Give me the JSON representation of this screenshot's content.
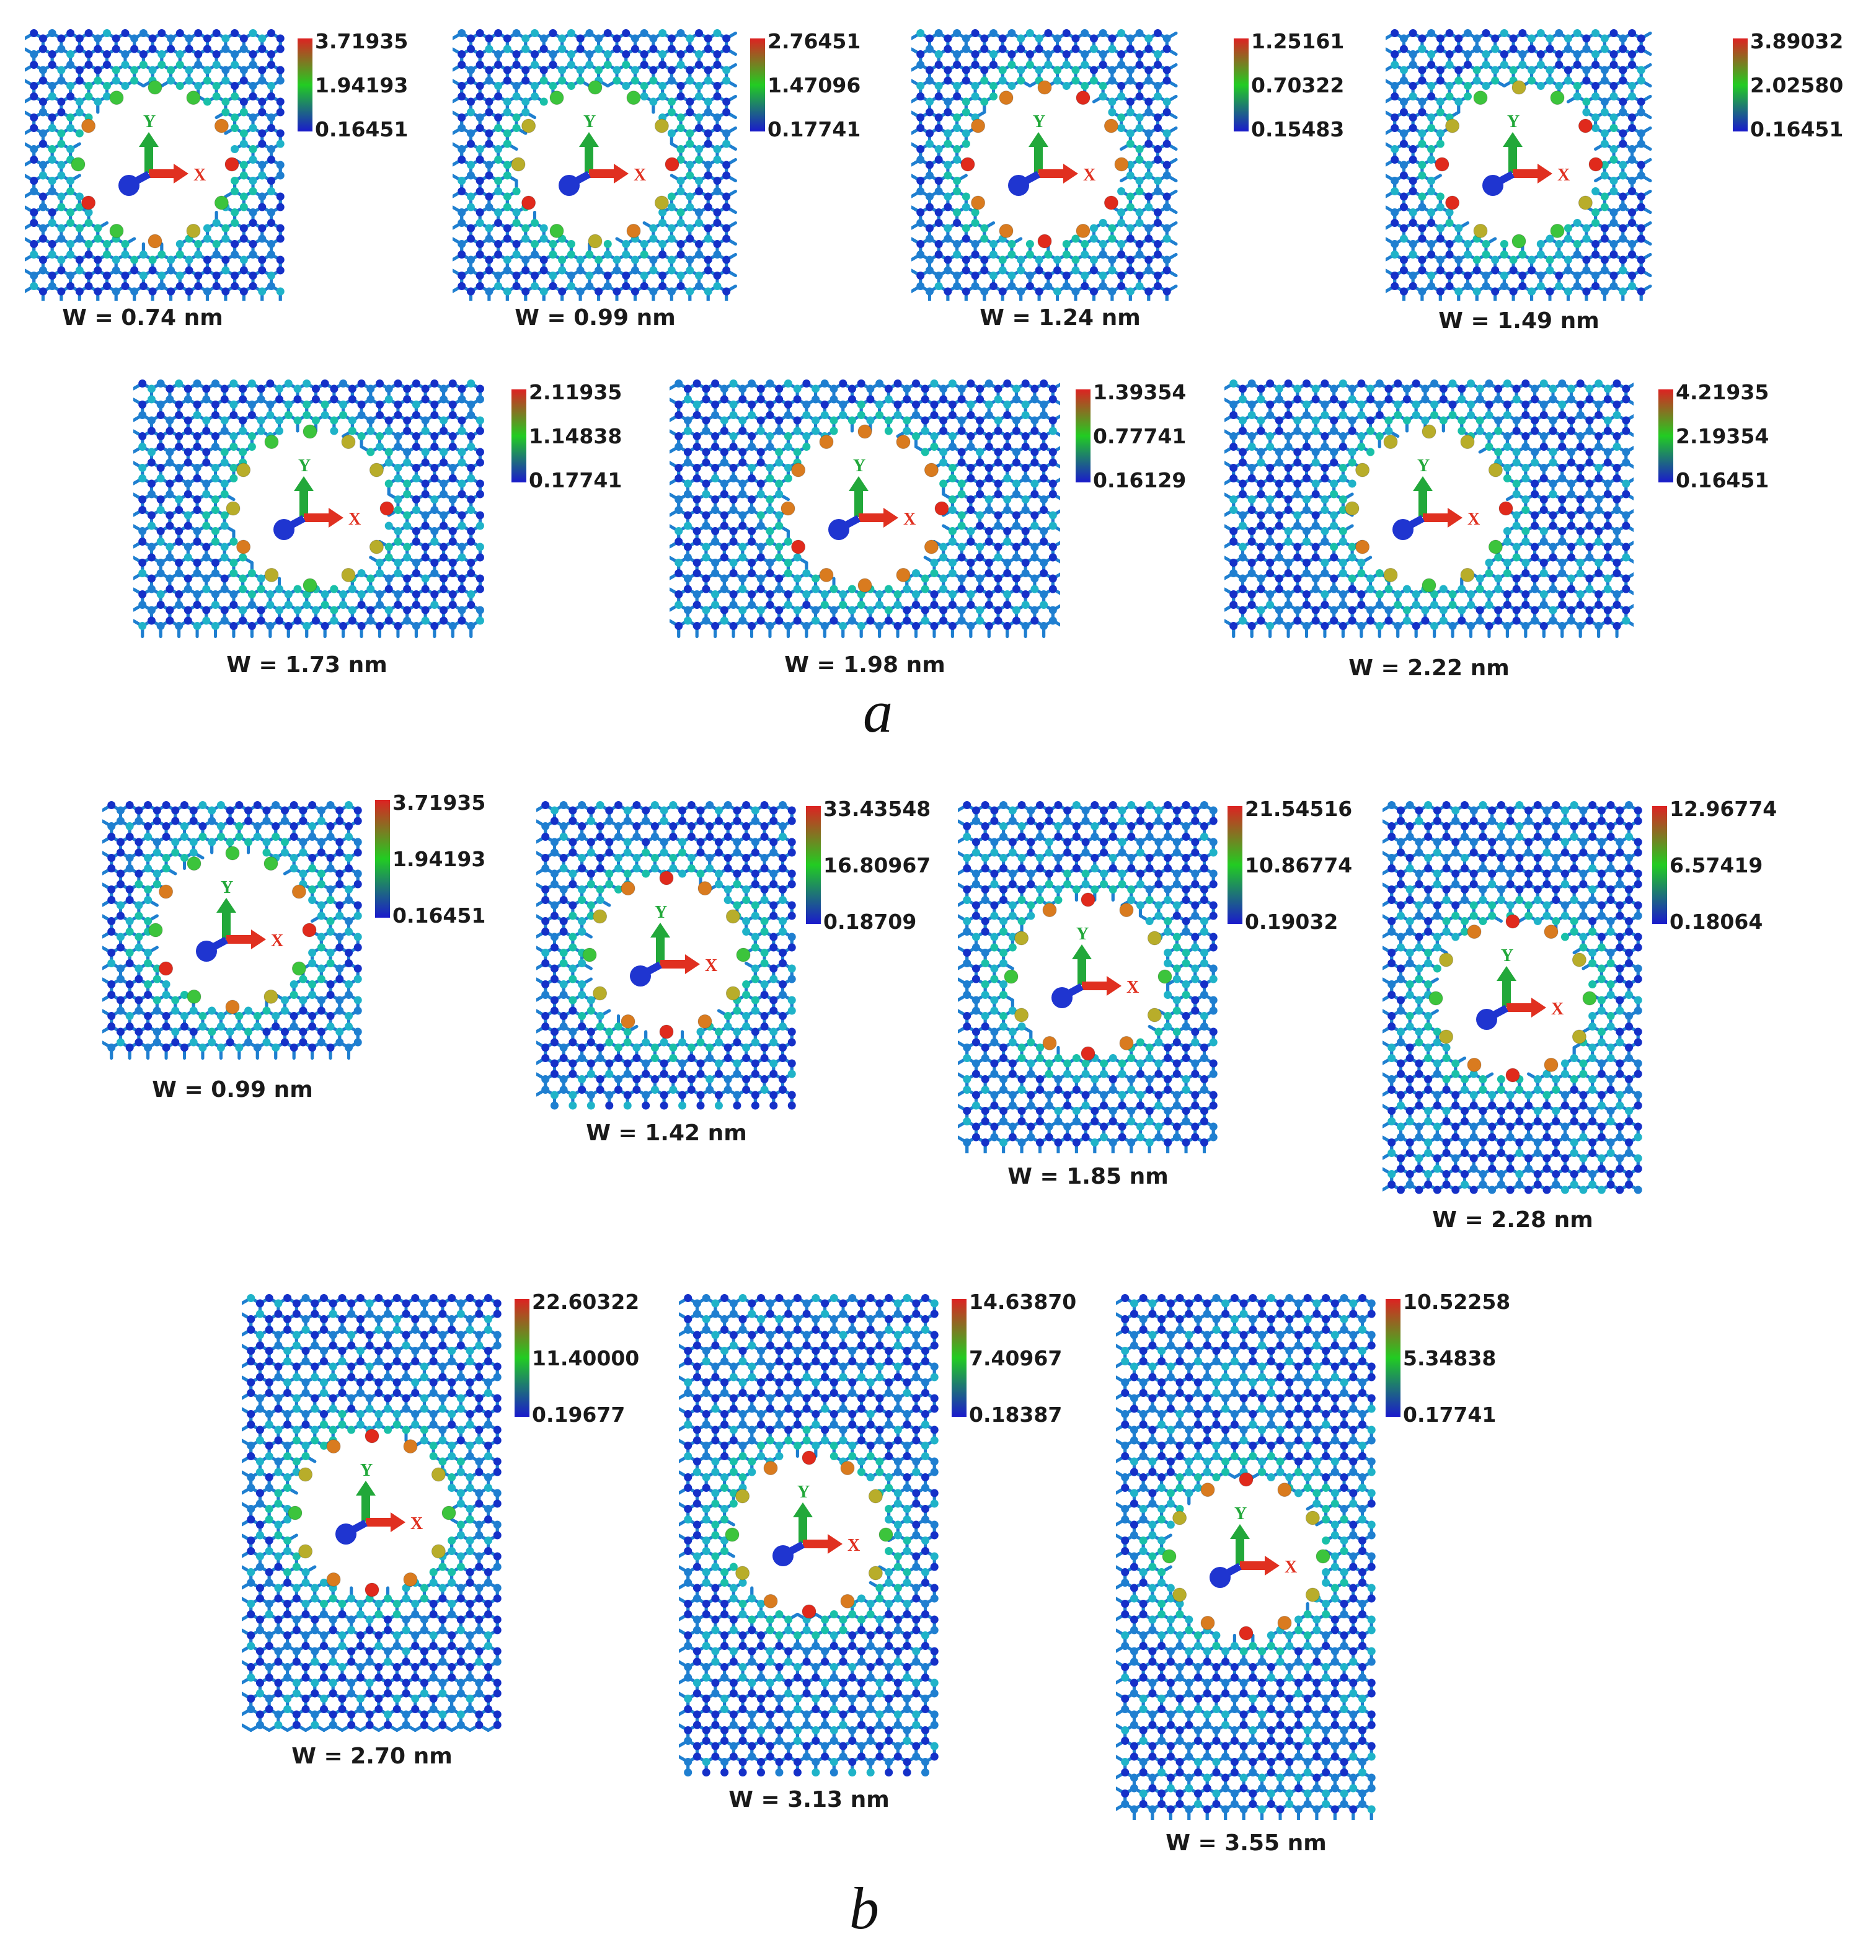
{
  "figure": {
    "section_a_label": "a",
    "section_b_label": "b",
    "axis_labels": {
      "x": "X",
      "y": "Y"
    },
    "colors": {
      "lattice_blue": "#1f7fd0",
      "lattice_light": "#1fb3c8",
      "atom_dark_blue": "#1530c8",
      "colorbar_low": "#1a1acc",
      "colorbar_mid": "#22cc22",
      "colorbar_high": "#dd2222",
      "atom_red": "#e02a1c",
      "atom_orange": "#d97b1f",
      "atom_olive": "#b8ad2a",
      "atom_green": "#3cc43c",
      "atom_teal": "#19c0a8",
      "axis_x": "#e03020",
      "axis_y": "#22a83a",
      "axis_z": "#1f35d0"
    }
  },
  "panels": [
    {
      "section": "a",
      "width_label": "W = 0.74 nm",
      "max": "3.71935",
      "mid": "1.94193",
      "min": "0.16451",
      "ring_colors": [
        "green",
        "green",
        "orange",
        "red",
        "green",
        "olive",
        "orange",
        "green",
        "red",
        "green",
        "orange",
        "green"
      ]
    },
    {
      "section": "a",
      "width_label": "W = 0.99 nm",
      "max": "2.76451",
      "mid": "1.47096",
      "min": "0.17741",
      "ring_colors": [
        "green",
        "green",
        "olive",
        "red",
        "olive",
        "orange",
        "olive",
        "green",
        "red",
        "olive",
        "olive",
        "green"
      ]
    },
    {
      "section": "a",
      "width_label": "W = 1.24 nm",
      "max": "1.25161",
      "mid": "0.70322",
      "min": "0.15483",
      "ring_colors": [
        "orange",
        "red",
        "orange",
        "orange",
        "red",
        "orange",
        "red",
        "orange",
        "orange",
        "red",
        "orange",
        "orange"
      ]
    },
    {
      "section": "a",
      "width_label": "W = 1.49 nm",
      "max": "3.89032",
      "mid": "2.02580",
      "min": "0.16451",
      "ring_colors": [
        "olive",
        "green",
        "red",
        "red",
        "olive",
        "green",
        "green",
        "olive",
        "red",
        "red",
        "olive",
        "green"
      ]
    },
    {
      "section": "a",
      "width_label": "W = 1.73 nm",
      "max": "2.11935",
      "mid": "1.14838",
      "min": "0.17741",
      "ring_colors": [
        "green",
        "olive",
        "olive",
        "red",
        "olive",
        "olive",
        "green",
        "olive",
        "orange",
        "olive",
        "olive",
        "green"
      ]
    },
    {
      "section": "a",
      "width_label": "W = 1.98 nm",
      "max": "1.39354",
      "mid": "0.77741",
      "min": "0.16129",
      "ring_colors": [
        "orange",
        "orange",
        "orange",
        "red",
        "orange",
        "orange",
        "orange",
        "orange",
        "red",
        "orange",
        "orange",
        "orange"
      ]
    },
    {
      "section": "a",
      "width_label": "W = 2.22 nm",
      "max": "4.21935",
      "mid": "2.19354",
      "min": "0.16451",
      "ring_colors": [
        "olive",
        "olive",
        "olive",
        "red",
        "green",
        "olive",
        "green",
        "olive",
        "orange",
        "olive",
        "olive",
        "olive"
      ]
    },
    {
      "section": "b",
      "width_label": "W = 0.99 nm",
      "max": "3.71935",
      "mid": "1.94193",
      "min": "0.16451",
      "ring_colors": [
        "green",
        "green",
        "orange",
        "red",
        "green",
        "olive",
        "orange",
        "green",
        "red",
        "green",
        "orange",
        "green"
      ]
    },
    {
      "section": "b",
      "width_label": "W = 1.42 nm",
      "max": "33.43548",
      "mid": "16.80967",
      "min": "0.18709",
      "ring_colors": [
        "red",
        "orange",
        "olive",
        "green",
        "olive",
        "orange",
        "red",
        "orange",
        "olive",
        "green",
        "olive",
        "orange"
      ]
    },
    {
      "section": "b",
      "width_label": "W = 1.85 nm",
      "max": "21.54516",
      "mid": "10.86774",
      "min": "0.19032",
      "ring_colors": [
        "red",
        "orange",
        "olive",
        "green",
        "olive",
        "orange",
        "red",
        "orange",
        "olive",
        "green",
        "olive",
        "orange"
      ]
    },
    {
      "section": "b",
      "width_label": "W = 2.28 nm",
      "max": "12.96774",
      "mid": "6.57419",
      "min": "0.18064",
      "ring_colors": [
        "red",
        "orange",
        "olive",
        "green",
        "olive",
        "orange",
        "red",
        "orange",
        "olive",
        "green",
        "olive",
        "orange"
      ]
    },
    {
      "section": "b",
      "width_label": "W = 2.70 nm",
      "max": "22.60322",
      "mid": "11.40000",
      "min": "0.19677",
      "ring_colors": [
        "red",
        "orange",
        "olive",
        "green",
        "olive",
        "orange",
        "red",
        "orange",
        "olive",
        "green",
        "olive",
        "orange"
      ]
    },
    {
      "section": "b",
      "width_label": "W = 3.13 nm",
      "max": "14.63870",
      "mid": "7.40967",
      "min": "0.18387",
      "ring_colors": [
        "red",
        "orange",
        "olive",
        "green",
        "olive",
        "orange",
        "red",
        "orange",
        "olive",
        "green",
        "olive",
        "orange"
      ]
    },
    {
      "section": "b",
      "width_label": "W = 3.55 nm",
      "max": "10.52258",
      "mid": "5.34838",
      "min": "0.17741",
      "ring_colors": [
        "red",
        "orange",
        "olive",
        "green",
        "olive",
        "orange",
        "red",
        "orange",
        "olive",
        "green",
        "olive",
        "orange"
      ]
    }
  ]
}
